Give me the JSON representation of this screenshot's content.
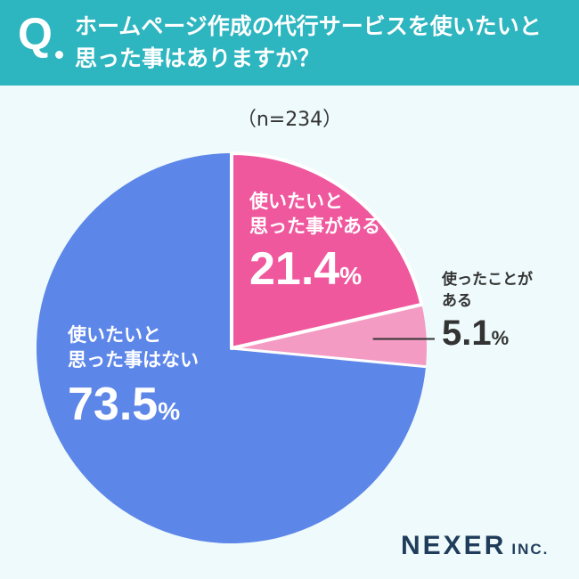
{
  "header": {
    "q_mark": "Q",
    "question_line1": "ホームページ作成の代行サービスを使いたいと",
    "question_line2": "思った事はありますか？"
  },
  "chart_data": {
    "type": "pie",
    "title": "",
    "sample": "（n=234）",
    "slices": [
      {
        "label_line1": "使いたいと",
        "label_line2": "思った事がある",
        "value": 21.4,
        "color": "#f0589e"
      },
      {
        "label_line1": "使ったことが",
        "label_line2": "ある",
        "value": 5.1,
        "color": "#f49bc4"
      },
      {
        "label_line1": "使いたいと",
        "label_line2": "思った事はない",
        "value": 73.5,
        "color": "#5d86e9"
      }
    ],
    "slices_pct_text": [
      "21.4",
      "5.1",
      "73.5"
    ],
    "pct_sign": "%",
    "start": "12 o'clock",
    "direction": "clockwise",
    "highlight_slice": 0
  },
  "brand": {
    "main": "NEXER",
    "sub": "INC."
  }
}
